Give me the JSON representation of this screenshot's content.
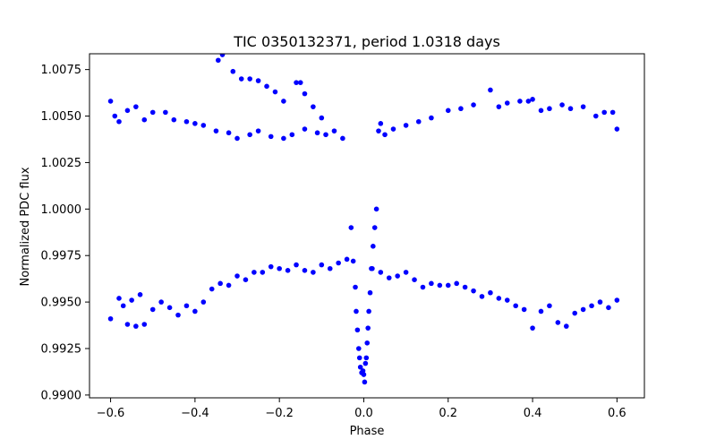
{
  "chart_data": {
    "type": "scatter",
    "title": "TIC 0350132371, period 1.0318 days",
    "xlabel": "Phase",
    "ylabel": "Normalized PDC flux",
    "xlim": [
      -0.65,
      0.665
    ],
    "ylim": [
      0.98985,
      1.00835
    ],
    "x_ticks": [
      -0.6,
      -0.4,
      -0.2,
      0.0,
      0.2,
      0.4,
      0.6
    ],
    "x_tick_labels": [
      "−0.6",
      "−0.4",
      "−0.2",
      "0.0",
      "0.2",
      "0.4",
      "0.6"
    ],
    "y_ticks": [
      0.99,
      0.9925,
      0.995,
      0.9975,
      1.0,
      1.0025,
      1.005,
      1.0075
    ],
    "y_tick_labels": [
      "0.9900",
      "0.9925",
      "0.9950",
      "0.9975",
      "1.0000",
      "1.0025",
      "1.0050",
      "1.0075"
    ],
    "marker_color": "#0000ff",
    "grid": false,
    "series": [
      {
        "points": [
          [
            -0.6,
            1.0058
          ],
          [
            -0.59,
            1.005
          ],
          [
            -0.58,
            1.0047
          ],
          [
            -0.56,
            1.0053
          ],
          [
            -0.54,
            1.0055
          ],
          [
            -0.52,
            1.0048
          ],
          [
            -0.5,
            1.0052
          ],
          [
            -0.47,
            1.0052
          ],
          [
            -0.45,
            1.0048
          ],
          [
            -0.42,
            1.0047
          ],
          [
            -0.4,
            1.0046
          ],
          [
            -0.38,
            1.0045
          ],
          [
            -0.35,
            1.0042
          ],
          [
            -0.32,
            1.0041
          ],
          [
            -0.3,
            1.0038
          ],
          [
            -0.27,
            1.004
          ],
          [
            -0.25,
            1.0042
          ],
          [
            -0.22,
            1.0039
          ],
          [
            -0.19,
            1.0038
          ],
          [
            -0.17,
            1.004
          ],
          [
            -0.14,
            1.0043
          ],
          [
            -0.11,
            1.0041
          ],
          [
            -0.09,
            1.004
          ],
          [
            -0.07,
            1.0042
          ],
          [
            -0.05,
            1.0038
          ],
          [
            -0.6,
            0.9941
          ],
          [
            -0.58,
            0.9952
          ],
          [
            -0.57,
            0.9948
          ],
          [
            -0.56,
            0.9938
          ],
          [
            -0.55,
            0.9951
          ],
          [
            -0.54,
            0.9937
          ],
          [
            -0.53,
            0.9954
          ],
          [
            -0.52,
            0.9938
          ],
          [
            -0.5,
            0.9946
          ],
          [
            -0.48,
            0.995
          ],
          [
            -0.46,
            0.9947
          ],
          [
            -0.44,
            0.9943
          ],
          [
            -0.42,
            0.9948
          ],
          [
            -0.4,
            0.9945
          ],
          [
            -0.38,
            0.995
          ],
          [
            -0.36,
            0.9957
          ],
          [
            -0.34,
            0.996
          ],
          [
            -0.32,
            0.9959
          ],
          [
            -0.3,
            0.9964
          ],
          [
            -0.28,
            0.9962
          ],
          [
            -0.26,
            0.9966
          ],
          [
            -0.24,
            0.9966
          ],
          [
            -0.22,
            0.9969
          ],
          [
            -0.2,
            0.9968
          ],
          [
            -0.18,
            0.9967
          ],
          [
            -0.16,
            0.997
          ],
          [
            -0.14,
            0.9967
          ],
          [
            -0.12,
            0.9966
          ],
          [
            -0.1,
            0.997
          ],
          [
            -0.08,
            0.9968
          ],
          [
            -0.06,
            0.9971
          ],
          [
            -0.04,
            0.9973
          ],
          [
            -0.345,
            1.008
          ],
          [
            -0.335,
            1.0083
          ],
          [
            -0.31,
            1.0074
          ],
          [
            -0.29,
            1.007
          ],
          [
            -0.27,
            1.007
          ],
          [
            -0.25,
            1.0069
          ],
          [
            -0.23,
            1.0066
          ],
          [
            -0.21,
            1.0063
          ],
          [
            -0.19,
            1.0058
          ],
          [
            -0.16,
            1.0068
          ],
          [
            -0.15,
            1.0068
          ],
          [
            -0.14,
            1.0062
          ],
          [
            -0.12,
            1.0055
          ],
          [
            -0.1,
            1.0049
          ],
          [
            -0.03,
            0.999
          ],
          [
            -0.025,
            0.9972
          ],
          [
            -0.02,
            0.9958
          ],
          [
            -0.018,
            0.9945
          ],
          [
            -0.015,
            0.9935
          ],
          [
            -0.012,
            0.9925
          ],
          [
            -0.01,
            0.992
          ],
          [
            -0.008,
            0.9915
          ],
          [
            -0.005,
            0.9912
          ],
          [
            -0.002,
            0.9913
          ],
          [
            0.0,
            0.9911
          ],
          [
            0.002,
            0.9907
          ],
          [
            0.004,
            0.9917
          ],
          [
            0.006,
            0.992
          ],
          [
            0.008,
            0.9928
          ],
          [
            0.01,
            0.9936
          ],
          [
            0.012,
            0.9945
          ],
          [
            0.015,
            0.9955
          ],
          [
            0.018,
            0.9968
          ],
          [
            0.022,
            0.998
          ],
          [
            0.026,
            0.999
          ],
          [
            0.03,
            1.0
          ],
          [
            0.035,
            1.0042
          ],
          [
            0.04,
            1.0046
          ],
          [
            0.05,
            1.004
          ],
          [
            0.07,
            1.0043
          ],
          [
            0.1,
            1.0045
          ],
          [
            0.13,
            1.0047
          ],
          [
            0.16,
            1.0049
          ],
          [
            0.2,
            1.0053
          ],
          [
            0.23,
            1.0054
          ],
          [
            0.26,
            1.0056
          ],
          [
            0.3,
            1.0064
          ],
          [
            0.32,
            1.0055
          ],
          [
            0.34,
            1.0057
          ],
          [
            0.37,
            1.0058
          ],
          [
            0.39,
            1.0058
          ],
          [
            0.4,
            1.0059
          ],
          [
            0.42,
            1.0053
          ],
          [
            0.44,
            1.0054
          ],
          [
            0.47,
            1.0056
          ],
          [
            0.49,
            1.0054
          ],
          [
            0.52,
            1.0055
          ],
          [
            0.55,
            1.005
          ],
          [
            0.57,
            1.0052
          ],
          [
            0.59,
            1.0052
          ],
          [
            0.6,
            1.0043
          ],
          [
            0.02,
            0.9968
          ],
          [
            0.04,
            0.9966
          ],
          [
            0.06,
            0.9963
          ],
          [
            0.08,
            0.9964
          ],
          [
            0.1,
            0.9966
          ],
          [
            0.12,
            0.9962
          ],
          [
            0.14,
            0.9958
          ],
          [
            0.16,
            0.996
          ],
          [
            0.18,
            0.9959
          ],
          [
            0.2,
            0.9959
          ],
          [
            0.22,
            0.996
          ],
          [
            0.24,
            0.9958
          ],
          [
            0.26,
            0.9956
          ],
          [
            0.28,
            0.9953
          ],
          [
            0.3,
            0.9955
          ],
          [
            0.32,
            0.9952
          ],
          [
            0.34,
            0.9951
          ],
          [
            0.36,
            0.9948
          ],
          [
            0.38,
            0.9946
          ],
          [
            0.4,
            0.9936
          ],
          [
            0.42,
            0.9945
          ],
          [
            0.44,
            0.9948
          ],
          [
            0.46,
            0.9939
          ],
          [
            0.48,
            0.9937
          ],
          [
            0.5,
            0.9944
          ],
          [
            0.52,
            0.9946
          ],
          [
            0.54,
            0.9948
          ],
          [
            0.56,
            0.995
          ],
          [
            0.58,
            0.9947
          ],
          [
            0.6,
            0.9951
          ]
        ]
      }
    ]
  }
}
